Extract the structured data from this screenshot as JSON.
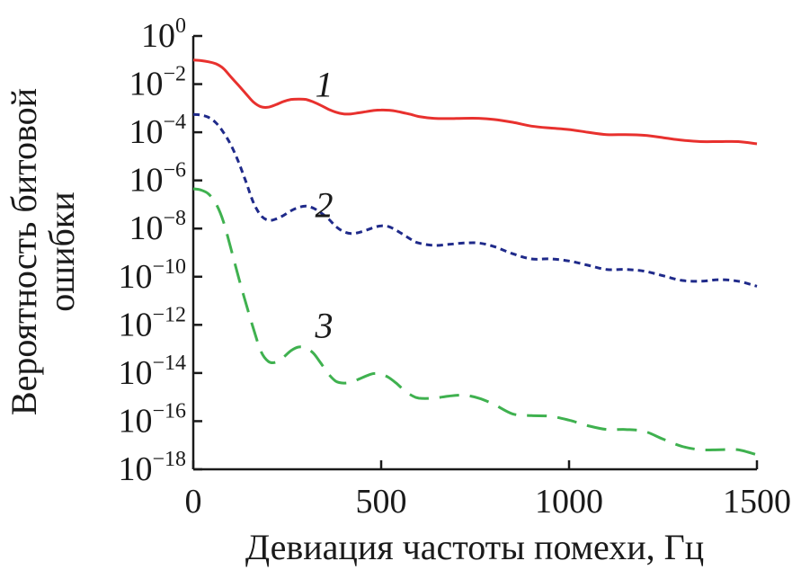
{
  "chart_data": {
    "type": "line",
    "xlabel": "Девиация частоты помехи, Гц",
    "ylabel_lines": [
      "Вероятность битовой",
      "ошибки"
    ],
    "xlim": [
      0,
      1500
    ],
    "ylim": [
      1e-18,
      1
    ],
    "y_scale": "log",
    "grid": false,
    "x_ticks": [
      {
        "value": 0,
        "label": "0"
      },
      {
        "value": 500,
        "label": "500"
      },
      {
        "value": 1000,
        "label": "1000"
      },
      {
        "value": 1500,
        "label": "1500"
      }
    ],
    "y_ticks": [
      {
        "value": 1,
        "base": "10",
        "exp": "0"
      },
      {
        "value": 0.01,
        "base": "10",
        "exp": "−2"
      },
      {
        "value": 0.0001,
        "base": "10",
        "exp": "−4"
      },
      {
        "value": 1e-06,
        "base": "10",
        "exp": "−6"
      },
      {
        "value": 1e-08,
        "base": "10",
        "exp": "−8"
      },
      {
        "value": 1e-10,
        "base": "10",
        "exp": "−10"
      },
      {
        "value": 1e-12,
        "base": "10",
        "exp": "−12"
      },
      {
        "value": 1e-14,
        "base": "10",
        "exp": "−14"
      },
      {
        "value": 1e-16,
        "base": "10",
        "exp": "−16"
      },
      {
        "value": 1e-18,
        "base": "10",
        "exp": "−18"
      }
    ],
    "series": [
      {
        "label": "1",
        "label_at": [
          420,
          0.01
        ],
        "color": "#e8312e",
        "dash": "solid",
        "x": [
          0,
          20,
          40,
          60,
          80,
          100,
          120,
          140,
          160,
          180,
          200,
          220,
          240,
          260,
          280,
          300,
          320,
          340,
          360,
          380,
          400,
          420,
          440,
          460,
          480,
          500,
          520,
          540,
          560,
          580,
          600,
          640,
          680,
          720,
          760,
          800,
          850,
          900,
          950,
          1000,
          1050,
          1100,
          1150,
          1200,
          1250,
          1300,
          1350,
          1400,
          1450,
          1500
        ],
        "y": [
          0.1,
          0.095,
          0.085,
          0.07,
          0.045,
          0.02,
          0.009,
          0.004,
          0.0018,
          0.00115,
          0.0011,
          0.0014,
          0.0019,
          0.0023,
          0.0024,
          0.0023,
          0.0018,
          0.0013,
          0.0009,
          0.00068,
          0.00058,
          0.00058,
          0.00064,
          0.00072,
          0.0008,
          0.00084,
          0.00082,
          0.00075,
          0.00064,
          0.00055,
          0.00045,
          0.00038,
          0.00037,
          0.00038,
          0.00038,
          0.00034,
          0.00026,
          0.00018,
          0.00015,
          0.00013,
          0.0001,
          8e-05,
          8e-05,
          7.5e-05,
          6e-05,
          4.7e-05,
          4.1e-05,
          4.1e-05,
          4.1e-05,
          3.3e-05
        ]
      },
      {
        "label": "2",
        "label_at": [
          420,
          1e-07
        ],
        "color": "#1f2a8a",
        "dash": "short",
        "x": [
          0,
          20,
          40,
          60,
          80,
          100,
          120,
          140,
          160,
          180,
          200,
          220,
          240,
          260,
          280,
          300,
          320,
          340,
          360,
          380,
          400,
          420,
          440,
          460,
          480,
          500,
          520,
          540,
          560,
          580,
          600,
          640,
          680,
          720,
          760,
          800,
          850,
          900,
          950,
          1000,
          1050,
          1100,
          1150,
          1200,
          1250,
          1300,
          1350,
          1400,
          1450,
          1500
        ],
        "y": [
          0.00055,
          0.00052,
          0.00042,
          0.00025,
          0.0001,
          3e-05,
          6e-06,
          9e-07,
          1.2e-07,
          3.5e-08,
          2.2e-08,
          2.5e-08,
          3.5e-08,
          5.5e-08,
          7.5e-08,
          8.5e-08,
          7e-08,
          4.5e-08,
          2.5e-08,
          1.2e-08,
          7.5e-09,
          6.2e-09,
          6.8e-09,
          8.5e-09,
          1.1e-08,
          1.3e-08,
          1.2e-08,
          8.5e-09,
          5.5e-09,
          3.5e-09,
          2.5e-09,
          2e-09,
          2.2e-09,
          2.5e-09,
          2.5e-09,
          1.8e-09,
          9e-10,
          5.5e-10,
          5.5e-10,
          4.5e-10,
          3e-10,
          2e-10,
          2e-10,
          1.7e-10,
          1.1e-10,
          7e-11,
          6.5e-11,
          7.5e-11,
          6.5e-11,
          4e-11
        ]
      },
      {
        "label": "3",
        "label_at": [
          420,
          1e-12
        ],
        "color": "#3fb14f",
        "dash": "long",
        "x": [
          0,
          20,
          40,
          60,
          80,
          100,
          120,
          140,
          160,
          180,
          200,
          220,
          240,
          260,
          280,
          300,
          320,
          340,
          360,
          380,
          400,
          420,
          440,
          460,
          480,
          500,
          520,
          540,
          560,
          580,
          600,
          640,
          680,
          720,
          760,
          800,
          850,
          900,
          950,
          1000,
          1050,
          1100,
          1150,
          1200,
          1250,
          1300,
          1350,
          1400,
          1450,
          1500
        ],
        "y": [
          4.5e-07,
          4e-07,
          2.8e-07,
          1.1e-07,
          2e-08,
          1.5e-09,
          1e-10,
          8e-12,
          7e-13,
          8e-14,
          3e-14,
          2.8e-14,
          4.5e-14,
          8.5e-14,
          1.2e-13,
          1.1e-13,
          6.5e-14,
          2.5e-14,
          9e-15,
          4.5e-15,
          3.8e-15,
          4.2e-15,
          5.5e-15,
          7.5e-15,
          9.5e-15,
          9e-15,
          6.5e-15,
          3.8e-15,
          2e-15,
          1.2e-15,
          9e-16,
          9e-16,
          1.1e-15,
          1.2e-15,
          9e-16,
          5e-16,
          2e-16,
          1.7e-16,
          1.6e-16,
          1.1e-16,
          6.5e-17,
          4.5e-17,
          4.5e-17,
          3.8e-17,
          1.8e-17,
          9e-18,
          6.5e-18,
          6.5e-18,
          6.5e-18,
          4e-18
        ]
      }
    ]
  }
}
